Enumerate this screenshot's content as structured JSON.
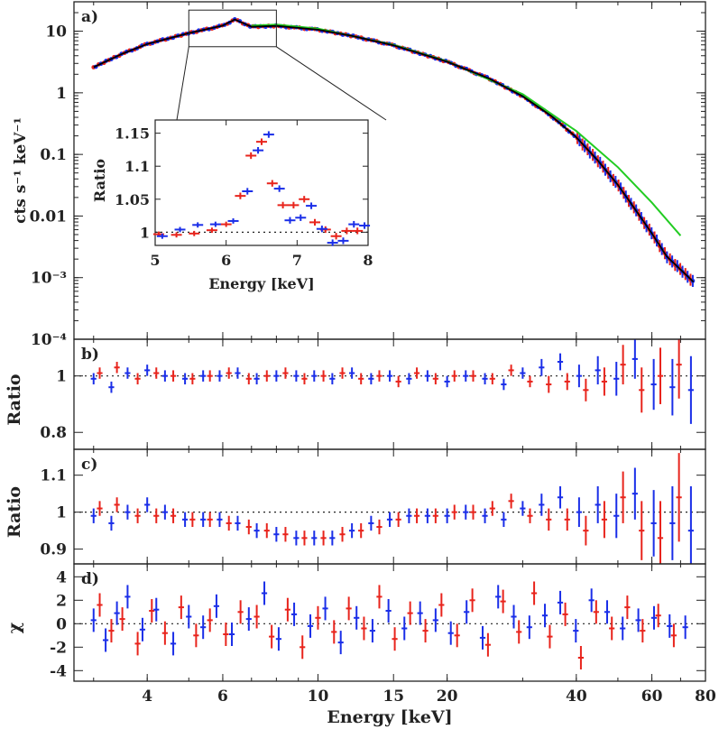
{
  "chart_data": [
    {
      "type": "line",
      "panel": "a)",
      "ylabel": "cts s⁻¹ keV⁻¹",
      "xscale": "log",
      "yscale": "log",
      "xlim": [
        2.7,
        80
      ],
      "ylim": [
        0.0001,
        30
      ],
      "xticks": [
        4,
        6,
        10,
        15,
        20,
        40,
        60,
        80
      ],
      "yticks": [
        0.0001,
        0.001,
        0.01,
        0.1,
        1,
        10
      ],
      "ytick_labels": [
        "10⁻⁴",
        "10⁻³",
        "0.01",
        "0.1",
        "1",
        "10"
      ],
      "colors": {
        "model": "#000000",
        "alt_model": "#22cc22",
        "data1": "#e8241c",
        "data2": "#1a2ee8"
      },
      "model": {
        "x": [
          3,
          3.5,
          4,
          5,
          6,
          6.4,
          7,
          8,
          10,
          12,
          15,
          20,
          25,
          30,
          35,
          40,
          45,
          50,
          55,
          60,
          65,
          70,
          75
        ],
        "y": [
          2.6,
          4.3,
          6.2,
          9.3,
          12.3,
          15.5,
          11.8,
          12.2,
          10.6,
          8.4,
          5.9,
          3.2,
          1.72,
          0.88,
          0.42,
          0.19,
          0.078,
          0.032,
          0.0125,
          0.0052,
          0.0022,
          0.00135,
          0.00085
        ]
      },
      "alt_model": {
        "x": [
          7,
          8,
          10,
          15,
          20,
          30,
          40,
          50,
          60,
          70
        ],
        "y": [
          12.3,
          12.8,
          11.0,
          6.0,
          3.25,
          0.95,
          0.24,
          0.062,
          0.0165,
          0.0048
        ]
      },
      "inset": {
        "xlabel": "Energy [keV]",
        "ylabel": "Ratio",
        "xlim": [
          5,
          8
        ],
        "ylim": [
          0.98,
          1.17
        ],
        "xticks": [
          5,
          6,
          7,
          8
        ],
        "yticks": [
          1,
          1.05,
          1.1,
          1.15
        ],
        "ytick_labels": [
          "1",
          "1.05",
          "1.1",
          "1.15"
        ],
        "reference": 1,
        "series": [
          {
            "color": "red",
            "x": [
              5.05,
              5.3,
              5.55,
              5.8,
              6.0,
              6.2,
              6.35,
              6.5,
              6.65,
              6.8,
              6.95,
              7.1,
              7.25,
              7.4,
              7.55,
              7.7,
              7.85
            ],
            "y": [
              0.997,
              0.996,
              0.998,
              1.003,
              1.012,
              1.055,
              1.116,
              1.137,
              1.074,
              1.041,
              1.041,
              1.05,
              1.015,
              1.004,
              0.994,
              1.002,
              1.002
            ],
            "err": [
              0.004,
              0.004,
              0.004,
              0.004,
              0.004,
              0.005,
              0.005,
              0.005,
              0.005,
              0.005,
              0.005,
              0.005,
              0.005,
              0.005,
              0.005,
              0.005,
              0.005
            ]
          },
          {
            "color": "blue",
            "x": [
              5.1,
              5.35,
              5.6,
              5.85,
              6.1,
              6.3,
              6.45,
              6.6,
              6.75,
              6.9,
              7.05,
              7.2,
              7.35,
              7.5,
              7.65,
              7.8,
              7.95
            ],
            "y": [
              0.994,
              1.004,
              1.011,
              1.012,
              1.017,
              1.062,
              1.124,
              1.148,
              1.066,
              1.018,
              1.022,
              1.04,
              1.005,
              0.984,
              0.987,
              1.012,
              1.01
            ],
            "err": [
              0.004,
              0.004,
              0.004,
              0.004,
              0.004,
              0.005,
              0.005,
              0.005,
              0.005,
              0.005,
              0.005,
              0.005,
              0.005,
              0.005,
              0.005,
              0.005,
              0.005
            ]
          }
        ]
      }
    },
    {
      "type": "scatter",
      "panel": "b)",
      "ylabel": "Ratio",
      "xscale": "log",
      "xlim": [
        2.7,
        80
      ],
      "ylim": [
        0.74,
        1.13
      ],
      "yticks": [
        0.8,
        1
      ],
      "ytick_labels": [
        "0.8",
        "1"
      ],
      "reference": 1,
      "series": [
        {
          "color": "red",
          "x": [
            3.1,
            3.4,
            3.8,
            4.2,
            4.6,
            5.1,
            5.6,
            6.2,
            6.9,
            7.6,
            8.4,
            9.3,
            10.3,
            11.4,
            12.6,
            13.9,
            15.4,
            17.0,
            18.8,
            20.8,
            23.0,
            25.5,
            28.2,
            31.2,
            34.5,
            38.1,
            42.1,
            46.5,
            51.4,
            56.8,
            62.8,
            69.4
          ],
          "y": [
            1.01,
            1.03,
            0.99,
            1.01,
            1.0,
            0.99,
            1.0,
            1.01,
            0.99,
            1.0,
            1.01,
            0.99,
            1.0,
            1.01,
            0.99,
            1.0,
            0.98,
            1.01,
            0.99,
            1.0,
            1.0,
            0.99,
            1.02,
            0.98,
            0.97,
            0.98,
            0.95,
            0.98,
            1.04,
            0.95,
            1.0,
            1.04
          ],
          "err": [
            0.02,
            0.02,
            0.02,
            0.02,
            0.02,
            0.02,
            0.02,
            0.02,
            0.02,
            0.02,
            0.02,
            0.02,
            0.02,
            0.02,
            0.02,
            0.02,
            0.02,
            0.02,
            0.02,
            0.02,
            0.02,
            0.02,
            0.02,
            0.02,
            0.03,
            0.03,
            0.04,
            0.05,
            0.07,
            0.08,
            0.1,
            0.12
          ]
        },
        {
          "color": "blue",
          "x": [
            3.0,
            3.3,
            3.6,
            4.0,
            4.4,
            4.9,
            5.4,
            5.9,
            6.5,
            7.2,
            8.0,
            8.9,
            9.8,
            10.8,
            12.0,
            13.3,
            14.7,
            16.3,
            18.0,
            20.0,
            22.1,
            24.5,
            27.1,
            30.0,
            33.2,
            36.7,
            40.6,
            44.9,
            49.6,
            54.8,
            60.6,
            67.0,
            74.0
          ],
          "y": [
            0.99,
            0.96,
            1.01,
            1.02,
            1.0,
            0.99,
            1.0,
            1.0,
            1.01,
            0.99,
            1.0,
            1.0,
            1.0,
            0.99,
            1.01,
            0.99,
            1.0,
            0.99,
            1.0,
            0.98,
            1.0,
            0.99,
            0.97,
            1.01,
            1.03,
            1.05,
            1.0,
            1.02,
            0.99,
            1.06,
            0.97,
            0.96,
            0.95
          ],
          "err": [
            0.02,
            0.02,
            0.02,
            0.02,
            0.02,
            0.02,
            0.02,
            0.02,
            0.02,
            0.02,
            0.02,
            0.02,
            0.02,
            0.02,
            0.02,
            0.02,
            0.02,
            0.02,
            0.02,
            0.02,
            0.02,
            0.02,
            0.02,
            0.02,
            0.03,
            0.03,
            0.04,
            0.05,
            0.06,
            0.07,
            0.09,
            0.1,
            0.12
          ]
        }
      ]
    },
    {
      "type": "scatter",
      "panel": "c)",
      "ylabel": "Ratio",
      "xscale": "log",
      "xlim": [
        2.7,
        80
      ],
      "ylim": [
        0.86,
        1.17
      ],
      "yticks": [
        0.9,
        1,
        1.1
      ],
      "ytick_labels": [
        "0.9",
        "1",
        "1.1"
      ],
      "reference": 1,
      "series": [
        {
          "color": "red",
          "x": [
            3.1,
            3.4,
            3.8,
            4.2,
            4.6,
            5.1,
            5.6,
            6.2,
            6.9,
            7.6,
            8.4,
            9.3,
            10.3,
            11.4,
            12.6,
            13.9,
            15.4,
            17.0,
            18.8,
            20.8,
            23.0,
            25.5,
            28.2,
            31.2,
            34.5,
            38.1,
            42.1,
            46.5,
            51.4,
            56.8,
            62.8,
            69.4
          ],
          "y": [
            1.01,
            1.02,
            0.99,
            0.99,
            0.99,
            0.98,
            0.98,
            0.97,
            0.96,
            0.95,
            0.94,
            0.93,
            0.93,
            0.94,
            0.95,
            0.96,
            0.98,
            0.99,
            0.99,
            1.0,
            1.0,
            1.01,
            1.03,
            0.99,
            0.98,
            0.98,
            0.95,
            0.98,
            1.04,
            0.95,
            0.93,
            1.04
          ],
          "err": [
            0.02,
            0.02,
            0.02,
            0.02,
            0.02,
            0.02,
            0.02,
            0.02,
            0.02,
            0.02,
            0.02,
            0.02,
            0.02,
            0.02,
            0.02,
            0.02,
            0.02,
            0.02,
            0.02,
            0.02,
            0.02,
            0.02,
            0.02,
            0.02,
            0.03,
            0.03,
            0.04,
            0.05,
            0.07,
            0.08,
            0.1,
            0.12
          ]
        },
        {
          "color": "blue",
          "x": [
            3.0,
            3.3,
            3.6,
            4.0,
            4.4,
            4.9,
            5.4,
            5.9,
            6.5,
            7.2,
            8.0,
            8.9,
            9.8,
            10.8,
            12.0,
            13.3,
            14.7,
            16.3,
            18.0,
            20.0,
            22.1,
            24.5,
            27.1,
            30.0,
            33.2,
            36.7,
            40.6,
            44.9,
            49.6,
            54.8,
            60.6,
            67.0,
            74.0
          ],
          "y": [
            0.99,
            0.97,
            1.0,
            1.02,
            1.0,
            0.98,
            0.98,
            0.98,
            0.97,
            0.95,
            0.94,
            0.93,
            0.93,
            0.93,
            0.95,
            0.97,
            0.98,
            0.99,
            0.99,
            0.99,
            1.0,
            0.99,
            0.98,
            1.01,
            1.02,
            1.04,
            1.0,
            1.02,
            0.99,
            1.05,
            0.97,
            0.97,
            0.95
          ],
          "err": [
            0.02,
            0.02,
            0.02,
            0.02,
            0.02,
            0.02,
            0.02,
            0.02,
            0.02,
            0.02,
            0.02,
            0.02,
            0.02,
            0.02,
            0.02,
            0.02,
            0.02,
            0.02,
            0.02,
            0.02,
            0.02,
            0.02,
            0.02,
            0.02,
            0.03,
            0.03,
            0.04,
            0.05,
            0.06,
            0.07,
            0.09,
            0.1,
            0.12
          ]
        }
      ]
    },
    {
      "type": "scatter",
      "panel": "d)",
      "ylabel": "χ",
      "xlabel": "Energy [keV]",
      "xscale": "log",
      "xlim": [
        2.7,
        80
      ],
      "ylim": [
        -4.9,
        5.1
      ],
      "xticks": [
        4,
        6,
        10,
        15,
        20,
        40,
        60,
        80
      ],
      "xtick_labels": [
        "4",
        "6",
        "10",
        "15",
        "20",
        "40",
        "60",
        "80"
      ],
      "yticks": [
        -4,
        -2,
        0,
        2,
        4
      ],
      "ytick_labels": [
        "-4",
        "-2",
        "0",
        "2",
        "4"
      ],
      "reference": 0,
      "series": [
        {
          "color": "red",
          "x": [
            3.1,
            3.3,
            3.5,
            3.8,
            4.1,
            4.4,
            4.8,
            5.2,
            5.6,
            6.1,
            6.6,
            7.2,
            7.8,
            8.5,
            9.2,
            10.0,
            10.9,
            11.8,
            12.8,
            13.9,
            15.1,
            16.4,
            17.8,
            19.4,
            21.1,
            22.9,
            24.9,
            27.0,
            29.4,
            31.9,
            34.7,
            37.7,
            41.0,
            44.5,
            48.4,
            52.6,
            57.1,
            62.1,
            67.5
          ],
          "y": [
            1.6,
            -0.6,
            0.4,
            -1.7,
            1.1,
            -0.8,
            1.4,
            -1.0,
            0.3,
            -0.9,
            1.0,
            0.6,
            -1.1,
            1.2,
            -2.0,
            0.5,
            -0.7,
            1.3,
            -0.4,
            2.3,
            -1.3,
            0.9,
            -0.6,
            1.6,
            -1.0,
            2.0,
            -1.8,
            1.9,
            -0.7,
            2.6,
            -1.1,
            0.8,
            -2.9,
            1.0,
            -0.4,
            1.4,
            -0.6,
            0.7,
            -1.0
          ],
          "err": [
            1,
            1,
            1,
            1,
            1,
            1,
            1,
            1,
            1,
            1,
            1,
            1,
            1,
            1,
            1,
            1,
            1,
            1,
            1,
            1,
            1,
            1,
            1,
            1,
            1,
            1,
            1,
            1,
            1,
            1,
            1,
            1,
            1,
            1,
            1,
            1,
            1,
            1,
            1
          ]
        },
        {
          "color": "blue",
          "x": [
            3.0,
            3.2,
            3.4,
            3.6,
            3.9,
            4.2,
            4.6,
            5.0,
            5.4,
            5.8,
            6.3,
            6.9,
            7.5,
            8.1,
            8.8,
            9.6,
            10.4,
            11.3,
            12.3,
            13.4,
            14.6,
            15.9,
            17.3,
            18.8,
            20.4,
            22.2,
            24.2,
            26.3,
            28.6,
            31.1,
            33.8,
            36.7,
            39.9,
            43.4,
            47.2,
            51.3,
            55.8,
            60.7,
            66.0,
            71.8
          ],
          "y": [
            0.3,
            -1.4,
            0.9,
            2.3,
            -0.5,
            1.2,
            -1.7,
            0.6,
            -0.3,
            1.5,
            -0.9,
            0.4,
            2.6,
            -1.3,
            0.8,
            -0.2,
            1.3,
            -1.6,
            0.5,
            -0.6,
            1.1,
            -0.4,
            0.9,
            0.3,
            -0.8,
            1.0,
            -1.2,
            2.3,
            0.6,
            -0.3,
            0.7,
            1.8,
            -0.6,
            2.0,
            1.0,
            -0.4,
            0.3,
            0.5,
            -0.2,
            -0.3
          ],
          "err": [
            1,
            1,
            1,
            1,
            1,
            1,
            1,
            1,
            1,
            1,
            1,
            1,
            1,
            1,
            1,
            1,
            1,
            1,
            1,
            1,
            1,
            1,
            1,
            1,
            1,
            1,
            1,
            1,
            1,
            1,
            1,
            1,
            1,
            1,
            1,
            1,
            1,
            1,
            1,
            1
          ]
        }
      ]
    }
  ]
}
